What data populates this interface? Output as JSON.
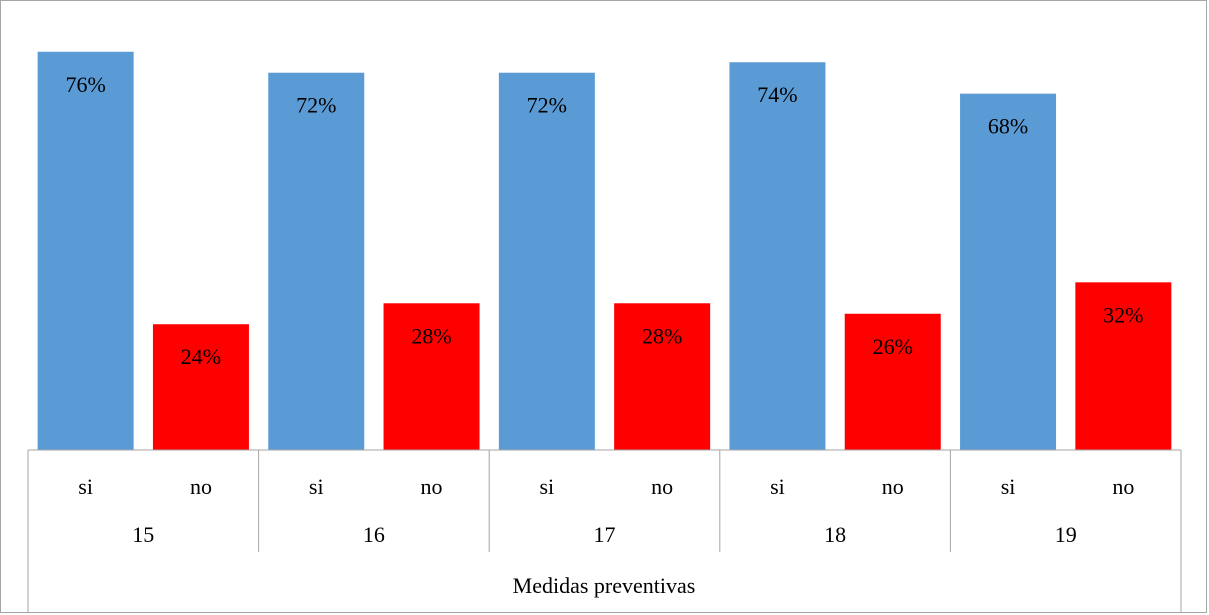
{
  "chart_data": {
    "type": "bar",
    "xlabel": "Medidas preventivas",
    "ylabel": "",
    "ylim": [
      0,
      100
    ],
    "grid": false,
    "legend": "none",
    "groups": [
      "15",
      "16",
      "17",
      "18",
      "19"
    ],
    "subcategories": [
      "si",
      "no"
    ],
    "values": [
      [
        76,
        24
      ],
      [
        72,
        28
      ],
      [
        72,
        28
      ],
      [
        74,
        26
      ],
      [
        68,
        32
      ]
    ],
    "data_labels": [
      [
        "76%",
        "24%"
      ],
      [
        "72%",
        "28%"
      ],
      [
        "72%",
        "28%"
      ],
      [
        "74%",
        "26%"
      ],
      [
        "68%",
        "32%"
      ]
    ],
    "colors": {
      "si": "#5b9bd5",
      "no": "#ff0000"
    }
  }
}
